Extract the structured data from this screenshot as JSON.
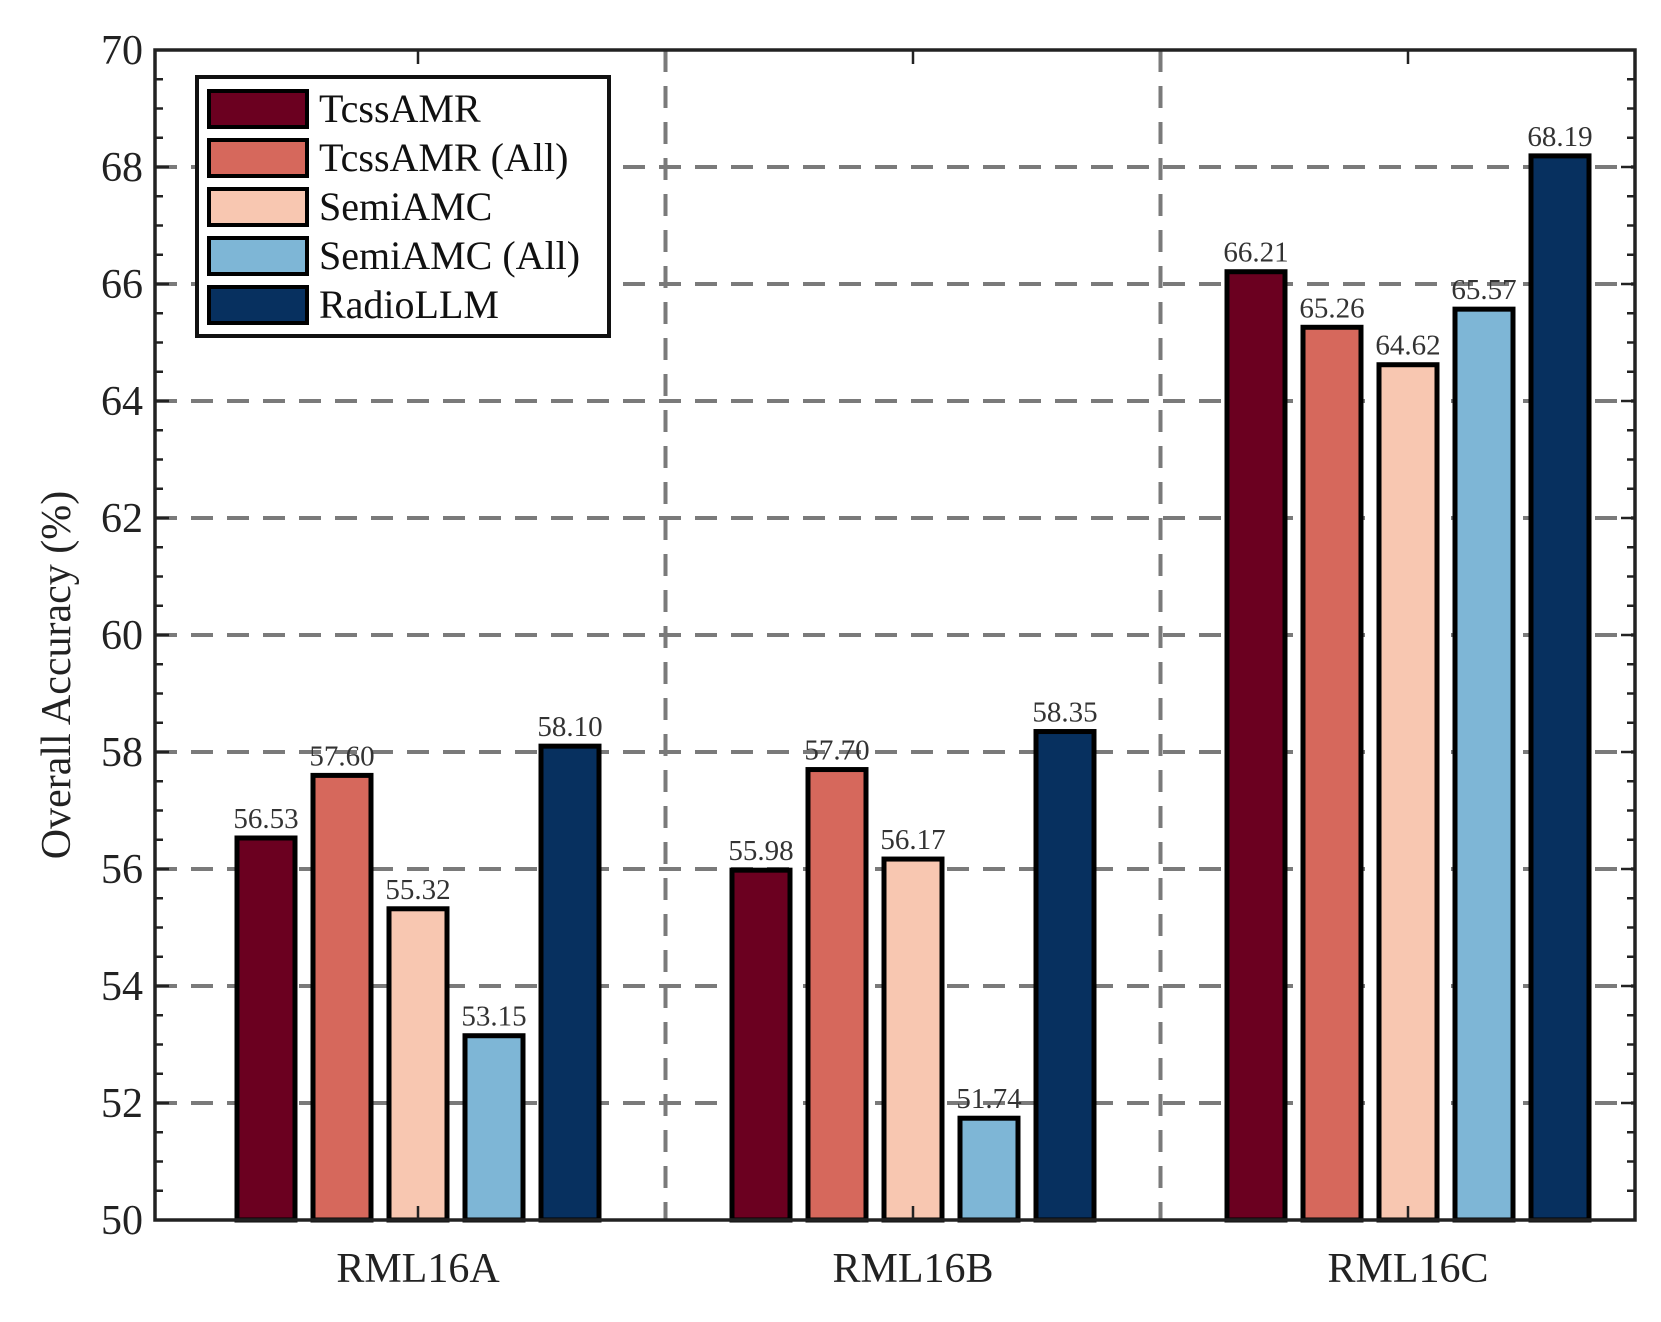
{
  "chart_data": {
    "type": "bar",
    "title": "",
    "xlabel": "",
    "ylabel": "Overall Accuracy (%)",
    "ylim": [
      50,
      70
    ],
    "yticks": [
      50,
      52,
      54,
      56,
      58,
      60,
      62,
      64,
      66,
      68,
      70
    ],
    "grid": true,
    "legend_position": "top-left",
    "categories": [
      "RML16A",
      "RML16B",
      "RML16C"
    ],
    "series": [
      {
        "name": "TcssAMR",
        "color": "#6b0020",
        "values": [
          56.53,
          55.98,
          66.21
        ],
        "labels": [
          "56.53",
          "55.98",
          "66.21"
        ]
      },
      {
        "name": "TcssAMR (All)",
        "color": "#d6685c",
        "values": [
          57.6,
          57.7,
          65.26
        ],
        "labels": [
          "57.60",
          "57.70",
          "65.26"
        ]
      },
      {
        "name": "SemiAMC",
        "color": "#f8c7b1",
        "values": [
          55.32,
          56.17,
          64.62
        ],
        "labels": [
          "55.32",
          "56.17",
          "64.62"
        ]
      },
      {
        "name": "SemiAMC (All)",
        "color": "#7eb6d6",
        "values": [
          53.15,
          51.74,
          65.57
        ],
        "labels": [
          "53.15",
          "51.74",
          "65.57"
        ]
      },
      {
        "name": "RadioLLM",
        "color": "#07305f",
        "values": [
          58.1,
          58.35,
          68.19
        ],
        "labels": [
          "58.10",
          "58.35",
          "68.19"
        ]
      }
    ]
  }
}
